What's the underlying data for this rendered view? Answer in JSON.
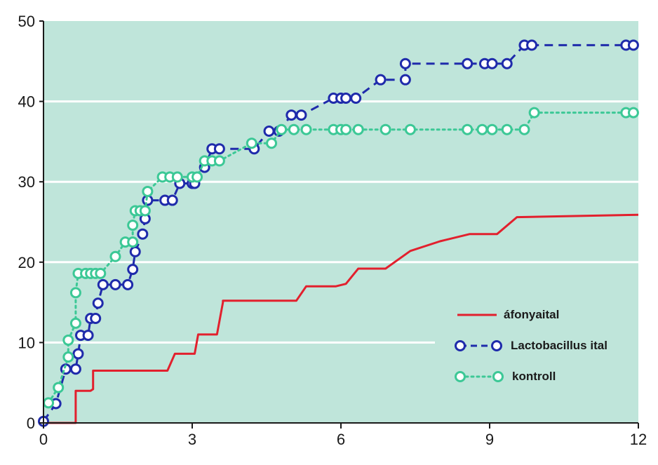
{
  "chart_data": {
    "type": "line",
    "title": "",
    "xlabel": "",
    "ylabel": "",
    "xlim": [
      0,
      12
    ],
    "ylim": [
      0,
      50
    ],
    "x_ticks": [
      "0",
      "3",
      "6",
      "9",
      "12"
    ],
    "y_ticks": [
      "0",
      "10",
      "20",
      "30",
      "40",
      "50"
    ],
    "grid": "horizontal",
    "legend_position": "bottom-right",
    "colors": {
      "plot_background": "#bfe5da",
      "grid": "#ffffff",
      "afonyaital": "#e2202d",
      "lactobacillus": "#1f2bab",
      "kontroll": "#3cc896"
    },
    "series": [
      {
        "name": "áfonyaital",
        "style": "solid-step",
        "points": [
          [
            0,
            0
          ],
          [
            0.65,
            0
          ],
          [
            0.65,
            4
          ],
          [
            0.95,
            4
          ],
          [
            1.0,
            4.2
          ],
          [
            1.0,
            6.5
          ],
          [
            1.1,
            6.5
          ],
          [
            2.5,
            6.5
          ],
          [
            2.65,
            8.6
          ],
          [
            3.05,
            8.6
          ],
          [
            3.12,
            11
          ],
          [
            3.5,
            11
          ],
          [
            3.62,
            15
          ],
          [
            3.62,
            15.2
          ],
          [
            4.5,
            15.2
          ],
          [
            5.1,
            15.2
          ],
          [
            5.3,
            17
          ],
          [
            5.9,
            17
          ],
          [
            6.1,
            17.3
          ],
          [
            6.35,
            19.2
          ],
          [
            6.9,
            19.2
          ],
          [
            7.4,
            21.4
          ],
          [
            8.0,
            22.6
          ],
          [
            8.6,
            23.5
          ],
          [
            9.15,
            23.5
          ],
          [
            9.55,
            25.6
          ],
          [
            12,
            25.9
          ]
        ]
      },
      {
        "name": "Lactobacillus ital",
        "style": "dashed-circles",
        "points": [
          [
            0,
            0.2
          ],
          [
            0.25,
            2.4
          ],
          [
            0.45,
            6.7
          ],
          [
            0.65,
            6.7
          ],
          [
            0.7,
            8.6
          ],
          [
            0.75,
            10.9
          ],
          [
            0.9,
            10.9
          ],
          [
            0.95,
            13
          ],
          [
            1.05,
            13
          ],
          [
            1.1,
            14.9
          ],
          [
            1.2,
            17.2
          ],
          [
            1.45,
            17.2
          ],
          [
            1.7,
            17.2
          ],
          [
            1.8,
            19.1
          ],
          [
            1.85,
            21.3
          ],
          [
            2.0,
            23.5
          ],
          [
            2.05,
            25.4
          ],
          [
            2.1,
            27.7
          ],
          [
            2.45,
            27.7
          ],
          [
            2.6,
            27.7
          ],
          [
            2.75,
            29.8
          ],
          [
            3.0,
            29.8
          ],
          [
            3.05,
            29.8
          ],
          [
            3.25,
            31.8
          ],
          [
            3.4,
            34.1
          ],
          [
            3.55,
            34.1
          ],
          [
            4.25,
            34.1
          ],
          [
            4.55,
            36.3
          ],
          [
            4.75,
            36.3
          ],
          [
            5.0,
            38.3
          ],
          [
            5.2,
            38.3
          ],
          [
            5.85,
            40.4
          ],
          [
            6.0,
            40.4
          ],
          [
            6.1,
            40.4
          ],
          [
            6.3,
            40.4
          ],
          [
            6.8,
            42.7
          ],
          [
            7.3,
            42.7
          ],
          [
            7.3,
            44.7
          ],
          [
            8.55,
            44.7
          ],
          [
            8.9,
            44.7
          ],
          [
            9.05,
            44.7
          ],
          [
            9.35,
            44.7
          ],
          [
            9.7,
            47
          ],
          [
            9.85,
            47
          ],
          [
            11.75,
            47
          ],
          [
            11.9,
            47
          ]
        ]
      },
      {
        "name": "kontroll",
        "style": "dotted-circles",
        "points": [
          [
            0.1,
            2.5
          ],
          [
            0.3,
            4.4
          ],
          [
            0.5,
            8.2
          ],
          [
            0.5,
            10.3
          ],
          [
            0.65,
            12.4
          ],
          [
            0.65,
            16.2
          ],
          [
            0.7,
            18.6
          ],
          [
            0.85,
            18.6
          ],
          [
            0.95,
            18.6
          ],
          [
            1.05,
            18.6
          ],
          [
            1.15,
            18.6
          ],
          [
            1.45,
            20.7
          ],
          [
            1.65,
            22.5
          ],
          [
            1.8,
            22.5
          ],
          [
            1.8,
            24.6
          ],
          [
            1.85,
            26.4
          ],
          [
            1.95,
            26.4
          ],
          [
            2.05,
            26.4
          ],
          [
            2.1,
            28.8
          ],
          [
            2.4,
            30.6
          ],
          [
            2.55,
            30.6
          ],
          [
            2.7,
            30.6
          ],
          [
            3.0,
            30.6
          ],
          [
            3.1,
            30.6
          ],
          [
            3.25,
            32.6
          ],
          [
            3.4,
            32.6
          ],
          [
            3.55,
            32.6
          ],
          [
            4.2,
            34.8
          ],
          [
            4.6,
            34.8
          ],
          [
            4.8,
            36.5
          ],
          [
            5.05,
            36.5
          ],
          [
            5.3,
            36.5
          ],
          [
            5.85,
            36.5
          ],
          [
            6.0,
            36.5
          ],
          [
            6.1,
            36.5
          ],
          [
            6.35,
            36.5
          ],
          [
            6.9,
            36.5
          ],
          [
            7.4,
            36.5
          ],
          [
            8.55,
            36.5
          ],
          [
            8.85,
            36.5
          ],
          [
            9.05,
            36.5
          ],
          [
            9.35,
            36.5
          ],
          [
            9.7,
            36.5
          ],
          [
            9.9,
            38.6
          ],
          [
            11.75,
            38.6
          ],
          [
            11.9,
            38.6
          ]
        ]
      }
    ]
  },
  "legend": {
    "items": [
      {
        "label": "áfonyaital",
        "style": "solid"
      },
      {
        "label": "Lactobacillus ital",
        "style": "dashed-circles"
      },
      {
        "label": "kontroll",
        "style": "dotted-circles"
      }
    ]
  }
}
